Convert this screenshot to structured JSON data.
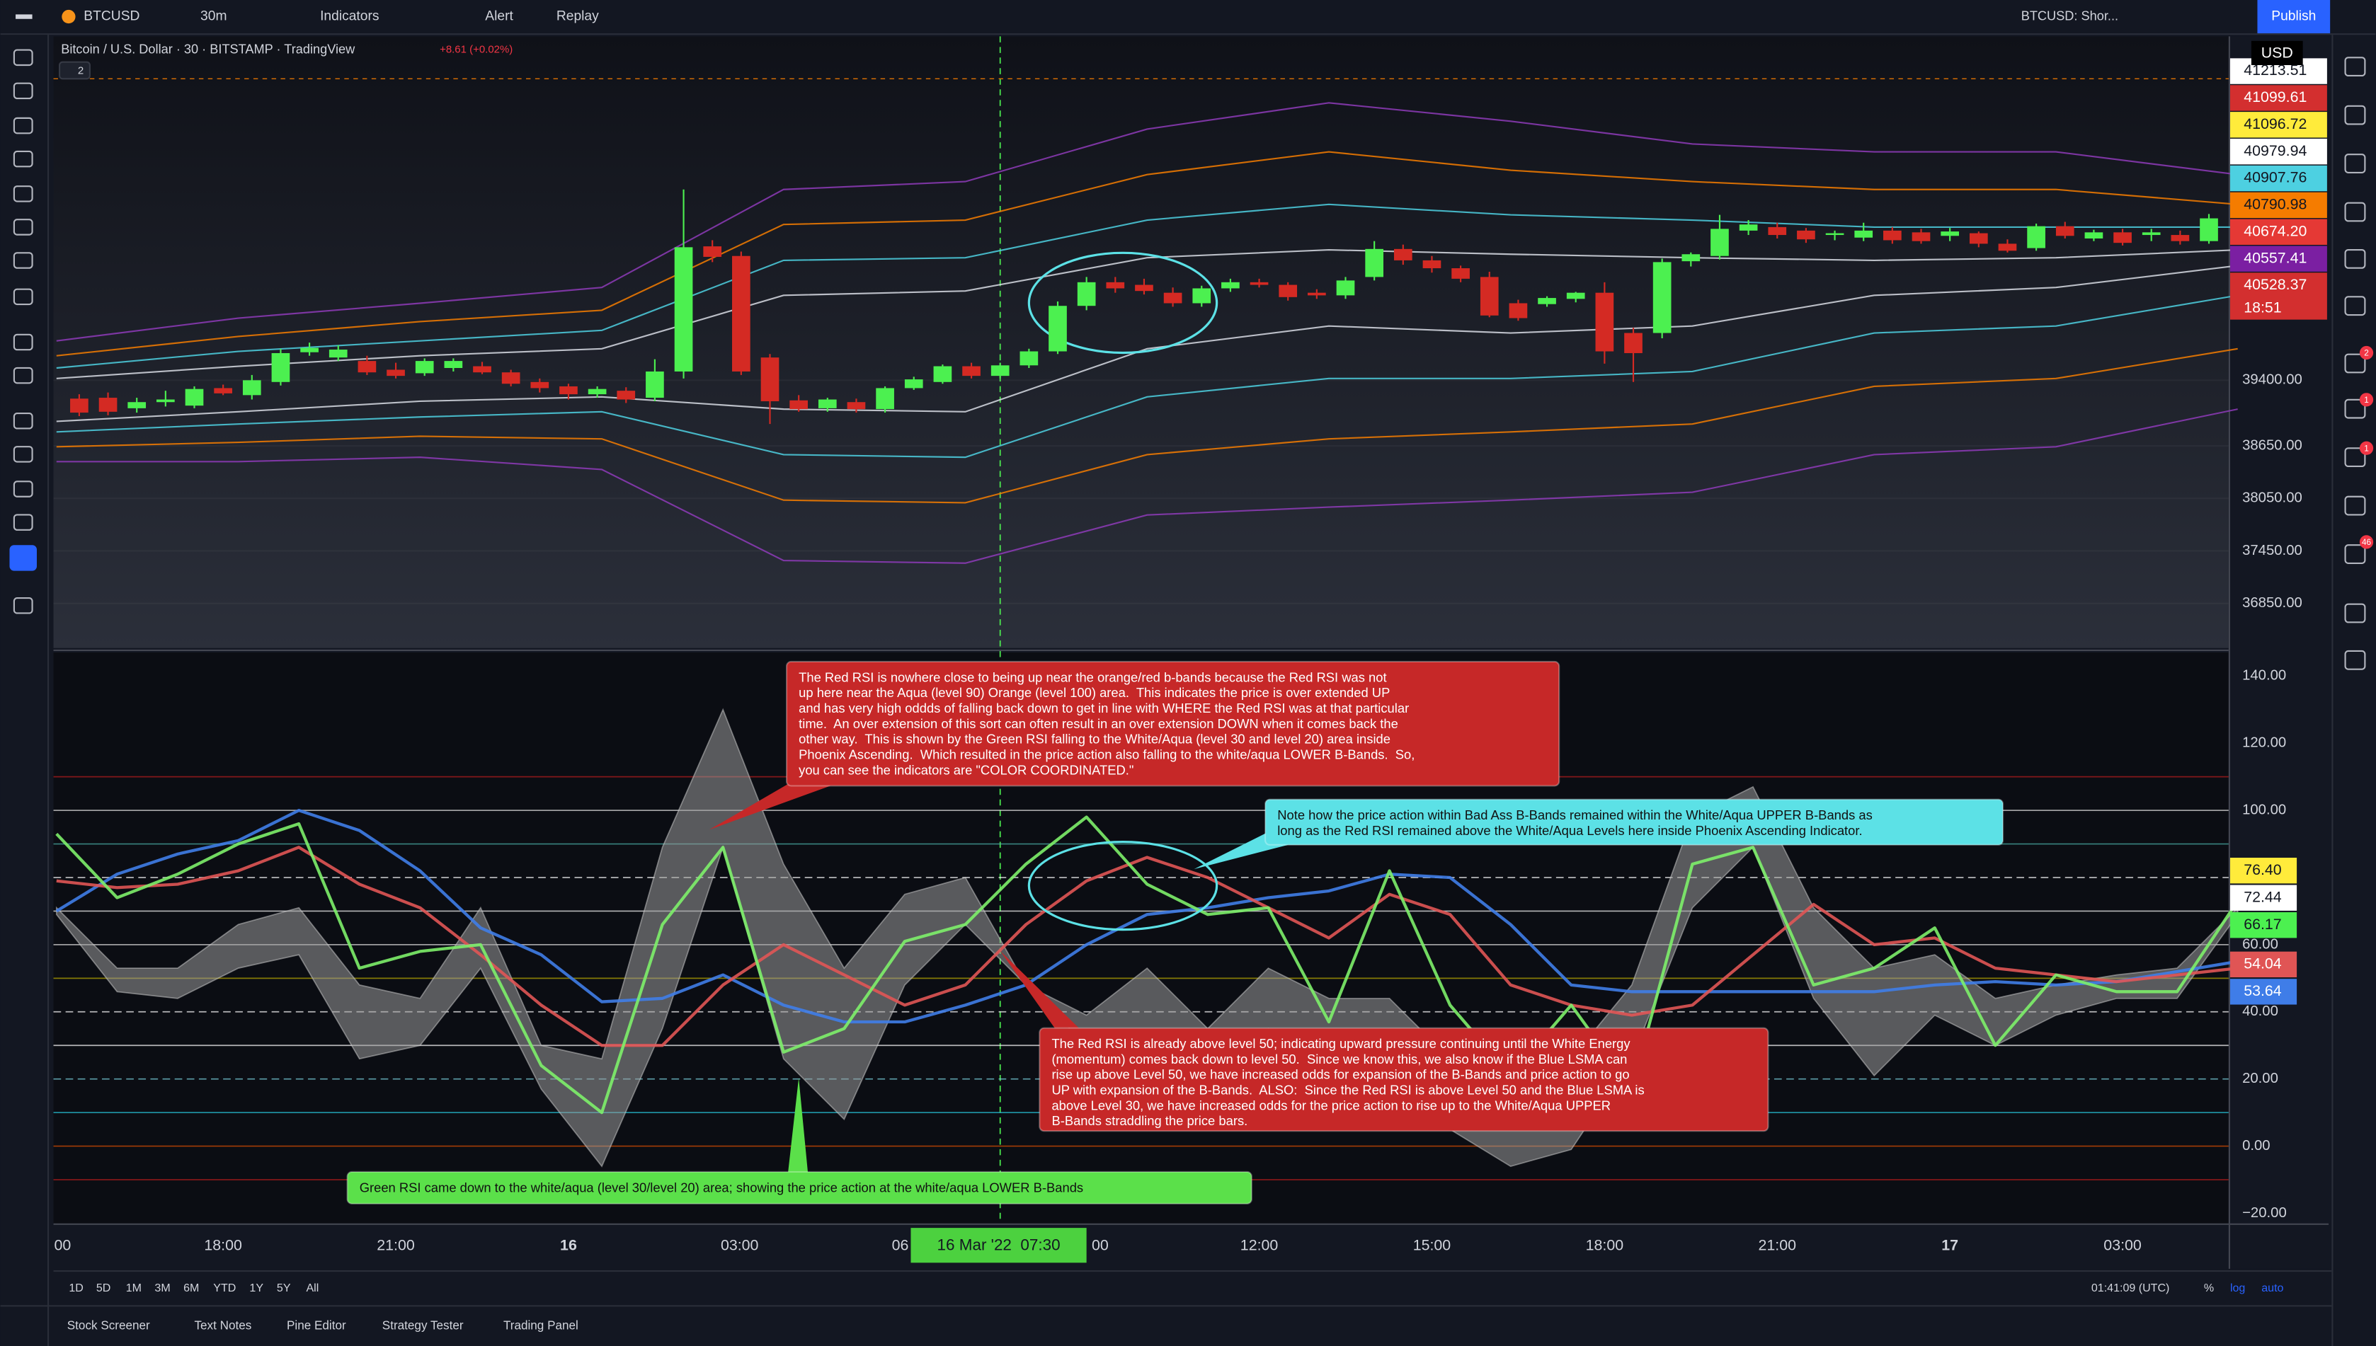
{
  "toolbar": {
    "symbol": "BTCUSD",
    "interval": "30m",
    "indicators": "Indicators",
    "alert": "Alert",
    "replay": "Replay",
    "layout": "BTCUSD: Shor...",
    "publish": "Publish"
  },
  "legend": {
    "title": "Bitcoin / U.S. Dollar · 30 · BITSTAMP · TradingView",
    "change": "+8.61 (+0.02%)",
    "count": "2"
  },
  "price_pane": {
    "ylim": [
      36340,
      43330
    ],
    "yticks": [
      {
        "value": 39400,
        "label": "39400.00"
      },
      {
        "value": 38650,
        "label": "38650.00"
      },
      {
        "value": 38050,
        "label": "38050.00"
      },
      {
        "value": 37450,
        "label": "37450.00"
      },
      {
        "value": 36850,
        "label": "36850.00"
      }
    ],
    "currency": "USD",
    "price_tags": [
      {
        "label": "41213.51",
        "color": "#ffffff",
        "text_color": "#131722"
      },
      {
        "label": "41099.61",
        "color": "#d32f2f",
        "text_color": "#ffffff"
      },
      {
        "label": "41096.72",
        "color": "#ffeb3b",
        "text_color": "#131722"
      },
      {
        "label": "40979.94",
        "color": "#ffffff",
        "text_color": "#131722"
      },
      {
        "label": "40907.76",
        "color": "#4dd0e1",
        "text_color": "#131722"
      },
      {
        "label": "40790.98",
        "color": "#f57c00",
        "text_color": "#131722"
      },
      {
        "label": "40674.20",
        "color": "#e53935",
        "text_color": "#ffffff"
      },
      {
        "label": "40557.41",
        "color": "#7b1fa2",
        "text_color": "#ffffff"
      },
      {
        "label": "40528.37",
        "color": "#d32f2f",
        "text_color": "#ffffff"
      }
    ],
    "last_time": "18:51",
    "up_color": "#4cf050",
    "down_color": "#d42a23",
    "candles": [
      [
        39190,
        39240,
        38990,
        39030
      ],
      [
        39200,
        39260,
        39000,
        39040
      ],
      [
        39080,
        39200,
        39030,
        39150
      ],
      [
        39150,
        39280,
        39100,
        39180
      ],
      [
        39110,
        39330,
        39080,
        39300
      ],
      [
        39310,
        39350,
        39230,
        39250
      ],
      [
        39230,
        39460,
        39180,
        39400
      ],
      [
        39380,
        39760,
        39340,
        39710
      ],
      [
        39720,
        39830,
        39680,
        39770
      ],
      [
        39660,
        39800,
        39620,
        39750
      ],
      [
        39620,
        39680,
        39460,
        39490
      ],
      [
        39520,
        39600,
        39420,
        39450
      ],
      [
        39480,
        39650,
        39450,
        39620
      ],
      [
        39540,
        39650,
        39500,
        39620
      ],
      [
        39560,
        39610,
        39470,
        39490
      ],
      [
        39490,
        39520,
        39330,
        39360
      ],
      [
        39380,
        39420,
        39260,
        39310
      ],
      [
        39330,
        39360,
        39180,
        39240
      ],
      [
        39240,
        39330,
        39200,
        39300
      ],
      [
        39280,
        39320,
        39140,
        39180
      ],
      [
        39200,
        39640,
        39160,
        39500
      ],
      [
        39500,
        41580,
        39420,
        40920
      ],
      [
        40930,
        41000,
        40750,
        40810
      ],
      [
        40820,
        40870,
        39460,
        39500
      ],
      [
        39660,
        39700,
        38900,
        39160
      ],
      [
        39170,
        39230,
        39040,
        39070
      ],
      [
        39080,
        39200,
        39040,
        39180
      ],
      [
        39150,
        39190,
        39030,
        39070
      ],
      [
        39070,
        39330,
        39030,
        39310
      ],
      [
        39310,
        39440,
        39290,
        39410
      ],
      [
        39380,
        39580,
        39360,
        39560
      ],
      [
        39560,
        39600,
        39420,
        39450
      ],
      [
        39450,
        39600,
        39420,
        39570
      ],
      [
        39570,
        39760,
        39540,
        39730
      ],
      [
        39730,
        40300,
        39700,
        40250
      ],
      [
        40250,
        40580,
        40200,
        40520
      ],
      [
        40520,
        40580,
        40400,
        40450
      ],
      [
        40490,
        40560,
        40380,
        40420
      ],
      [
        40400,
        40460,
        40240,
        40280
      ],
      [
        40280,
        40480,
        40240,
        40450
      ],
      [
        40450,
        40560,
        40410,
        40520
      ],
      [
        40520,
        40560,
        40460,
        40490
      ],
      [
        40490,
        40520,
        40310,
        40350
      ],
      [
        40400,
        40440,
        40330,
        40370
      ],
      [
        40370,
        40580,
        40330,
        40540
      ],
      [
        40580,
        40990,
        40540,
        40900
      ],
      [
        40900,
        40950,
        40720,
        40770
      ],
      [
        40770,
        40820,
        40630,
        40680
      ],
      [
        40680,
        40710,
        40520,
        40560
      ],
      [
        40580,
        40640,
        40120,
        40140
      ],
      [
        40280,
        40320,
        40080,
        40110
      ],
      [
        40270,
        40360,
        40240,
        40340
      ],
      [
        40330,
        40410,
        40290,
        40400
      ],
      [
        40400,
        40520,
        39590,
        39730
      ],
      [
        39940,
        40000,
        39380,
        39710
      ],
      [
        39940,
        40790,
        39880,
        40750
      ],
      [
        40760,
        40860,
        40700,
        40840
      ],
      [
        40820,
        41290,
        40780,
        41130
      ],
      [
        41110,
        41230,
        41060,
        41180
      ],
      [
        41150,
        41200,
        41020,
        41060
      ],
      [
        41110,
        41140,
        40970,
        41010
      ],
      [
        41060,
        41110,
        41000,
        41080
      ],
      [
        41030,
        41200,
        40990,
        41110
      ],
      [
        41110,
        41150,
        40960,
        41000
      ],
      [
        41090,
        41130,
        40960,
        40990
      ],
      [
        41050,
        41140,
        40990,
        41100
      ],
      [
        41080,
        41100,
        40920,
        40960
      ],
      [
        40960,
        41010,
        40860,
        40880
      ],
      [
        40910,
        41190,
        40880,
        41160
      ],
      [
        41160,
        41210,
        41020,
        41050
      ],
      [
        41020,
        41120,
        40990,
        41090
      ],
      [
        41090,
        41130,
        40940,
        40970
      ],
      [
        41060,
        41130,
        40990,
        41090
      ],
      [
        41060,
        41110,
        40950,
        40990
      ],
      [
        40990,
        41300,
        40960,
        41250
      ]
    ],
    "bands": [
      {
        "color": "#8e3bb8",
        "values": [
          39850,
          40110,
          40280,
          40460,
          41580,
          41670,
          42270,
          42570,
          42360,
          42100,
          42010,
          42010,
          41750
        ]
      },
      {
        "color": "#f57c00",
        "values": [
          39680,
          39900,
          40070,
          40200,
          41180,
          41230,
          41750,
          42010,
          41800,
          41670,
          41580,
          41580,
          41410
        ]
      },
      {
        "color": "#4dd0e1",
        "values": [
          39540,
          39730,
          39850,
          39970,
          40770,
          40800,
          41230,
          41410,
          41290,
          41230,
          41150,
          41150,
          41150
        ]
      },
      {
        "color": "#d7dae3",
        "values": [
          39420,
          39560,
          39680,
          39760,
          40370,
          40420,
          40800,
          40890,
          40840,
          40800,
          40770,
          40800,
          40890
        ]
      },
      {
        "color": "#d7dae3",
        "values": [
          38930,
          39040,
          39160,
          39210,
          39070,
          39040,
          39760,
          40020,
          39940,
          40020,
          40370,
          40460,
          40710
        ]
      },
      {
        "color": "#4dd0e1",
        "values": [
          38810,
          38900,
          38980,
          39040,
          38550,
          38520,
          39210,
          39420,
          39420,
          39500,
          39940,
          40020,
          40370
        ]
      },
      {
        "color": "#f57c00",
        "values": [
          38640,
          38690,
          38760,
          38730,
          38030,
          38000,
          38550,
          38730,
          38810,
          38900,
          39330,
          39420,
          39760
        ]
      },
      {
        "color": "#8e3bb8",
        "values": [
          38470,
          38470,
          38520,
          38380,
          37340,
          37310,
          37860,
          37950,
          38030,
          38120,
          38550,
          38640,
          39070
        ]
      }
    ]
  },
  "rsi_pane": {
    "ylim": [
      -23,
      147
    ],
    "yticks": [
      {
        "value": 140,
        "label": "140.00"
      },
      {
        "value": 120,
        "label": "120.00"
      },
      {
        "value": 100,
        "label": "100.00"
      },
      {
        "value": 60,
        "label": "60.00"
      },
      {
        "value": 40,
        "label": "40.00"
      },
      {
        "value": 20,
        "label": "20.00"
      },
      {
        "value": 0,
        "label": "0.00"
      },
      {
        "value": -20,
        "label": "−20.00"
      }
    ],
    "levels": [
      {
        "value": 110,
        "color": "#b71c1c",
        "dashed": false
      },
      {
        "value": 100,
        "color": "#e0e0e0",
        "dashed": false
      },
      {
        "value": 90,
        "color": "#4db6ac",
        "dashed": false
      },
      {
        "value": 80,
        "color": "#ffffff",
        "dashed": true
      },
      {
        "value": 70,
        "color": "#ffffff",
        "dashed": false
      },
      {
        "value": 60,
        "color": "#e0e0e0",
        "dashed": false
      },
      {
        "value": 50,
        "color": "#b8a800",
        "dashed": false
      },
      {
        "value": 40,
        "color": "#ffffff",
        "dashed": true
      },
      {
        "value": 30,
        "color": "#ffffff",
        "dashed": false
      },
      {
        "value": 20,
        "color": "#80deea",
        "dashed": true
      },
      {
        "value": 10,
        "color": "#26c6da",
        "dashed": false
      },
      {
        "value": 0,
        "color": "#e65100",
        "dashed": false
      },
      {
        "value": -10,
        "color": "#b71c1c",
        "dashed": false
      }
    ],
    "energy": {
      "color": "#9a9a9a",
      "upper": [
        71,
        53,
        53,
        66,
        71,
        48,
        44,
        71,
        30,
        26,
        89,
        130,
        84,
        53,
        75,
        80,
        48,
        39,
        53,
        35,
        53,
        44,
        44,
        26,
        8,
        26,
        48,
        98,
        107,
        71,
        53,
        57,
        44,
        48,
        51,
        53,
        71
      ],
      "lower": [
        69,
        46,
        44,
        53,
        57,
        26,
        30,
        53,
        17,
        -6,
        35,
        89,
        26,
        8,
        48,
        66,
        48,
        30,
        30,
        17,
        35,
        26,
        30,
        5,
        -6,
        -1,
        26,
        71,
        89,
        44,
        21,
        39,
        30,
        39,
        44,
        44,
        69
      ]
    },
    "series": [
      {
        "color": "#3f7de8",
        "values": [
          70,
          81,
          87,
          91,
          100,
          94,
          82,
          65,
          57,
          43,
          44,
          51,
          42,
          37,
          37,
          42,
          48,
          60,
          69,
          71,
          74,
          76,
          81,
          80,
          66,
          48,
          46,
          46,
          46,
          46,
          46,
          48,
          49,
          48,
          49,
          52,
          55
        ]
      },
      {
        "color": "#e05555",
        "values": [
          79,
          77,
          78,
          82,
          89,
          78,
          71,
          57,
          42,
          30,
          30,
          48,
          60,
          51,
          42,
          48,
          66,
          79,
          86,
          80,
          71,
          62,
          75,
          69,
          48,
          42,
          39,
          42,
          57,
          72,
          60,
          62,
          53,
          51,
          49,
          51,
          53
        ]
      },
      {
        "color": "#7df06a",
        "values": [
          93,
          74,
          81,
          90,
          96,
          53,
          58,
          60,
          24,
          10,
          66,
          89,
          28,
          35,
          61,
          66,
          84,
          98,
          78,
          69,
          71,
          37,
          82,
          42,
          21,
          42,
          17,
          84,
          89,
          48,
          53,
          65,
          30,
          51,
          46,
          46,
          73
        ]
      }
    ],
    "tags": [
      {
        "label": "76.40",
        "color": "#ffeb3b",
        "text_color": "#131722"
      },
      {
        "label": "72.44",
        "color": "#ffffff",
        "text_color": "#131722"
      },
      {
        "label": "66.17",
        "color": "#4cf050",
        "text_color": "#131722"
      },
      {
        "label": "54.04",
        "color": "#e05555",
        "text_color": "#ffffff"
      },
      {
        "label": "53.64",
        "color": "#3f7de8",
        "text_color": "#ffffff"
      }
    ]
  },
  "time_axis": {
    "labels": [
      "00",
      "18:00",
      "21:00",
      "16",
      "03:00",
      "06",
      "00",
      "12:00",
      "15:00",
      "18:00",
      "21:00",
      "17",
      "03:00"
    ],
    "crosshair": "16 Mar '22  07:30"
  },
  "annotations": [
    {
      "color": "#c62828",
      "text_color": "#ffffff",
      "lines": [
        "The Red RSI is nowhere close to being up near the orange/red b-bands because the Red RSI was not",
        "up here near the Aqua (level 90) Orange (level 100) area.  This indicates the price is over extended UP",
        "and has very high oddds of falling back down to get in line with WHERE the Red RSI was at that particular",
        "time.  An over extension of this sort can often result in an over extension DOWN when it comes back the",
        "other way.  This is shown by the Green RSI falling to the White/Aqua (level 30 and level 20) area inside",
        "Phoenix Ascending.  Which resulted in the price action also falling to the white/aqua LOWER B-Bands.  So,",
        "you can see the indicators are \"COLOR COORDINATED.\""
      ]
    },
    {
      "color": "#5ce1e6",
      "text_color": "#111111",
      "lines": [
        "Note how the price action within Bad Ass B-Bands remained within the White/Aqua UPPER B-Bands as",
        "long as the Red RSI remained above the White/Aqua Levels here inside Phoenix Ascending Indicator."
      ]
    },
    {
      "color": "#c62828",
      "text_color": "#ffffff",
      "lines": [
        "The Red RSI is already above level 50; indicating upward pressure continuing until the White Energy",
        "(momentum) comes back down to level 50.  Since we know this, we also know if the Blue LSMA can",
        "rise up above Level 50, we have increased odds for expansion of the B-Bands and price action to go",
        "UP with expansion of the B-Bands.  ALSO:  Since the Red RSI is above Level 50 and the Blue LSMA is",
        "above Level 30, we have increased odds for the price action to rise up to the White/Aqua UPPER",
        "B-Bands straddling the price bars."
      ]
    },
    {
      "color": "#5be04a",
      "text_color": "#111111",
      "lines": [
        "Green RSI came down to the white/aqua (level 30/level 20) area; showing the price action at the white/aqua LOWER B-Bands"
      ]
    }
  ],
  "bottom_bar": {
    "ranges": [
      "1D",
      "5D",
      "1M",
      "3M",
      "6M",
      "YTD",
      "1Y",
      "5Y",
      "All"
    ],
    "clock": "01:41:09 (UTC)",
    "percent": "%",
    "log": "log",
    "auto": "auto"
  },
  "tabs": [
    "Stock Screener",
    "Text Notes",
    "Pine Editor",
    "Strategy Tester",
    "Trading Panel"
  ],
  "sidebar_badges": [
    "2",
    "1",
    "1",
    "46"
  ]
}
